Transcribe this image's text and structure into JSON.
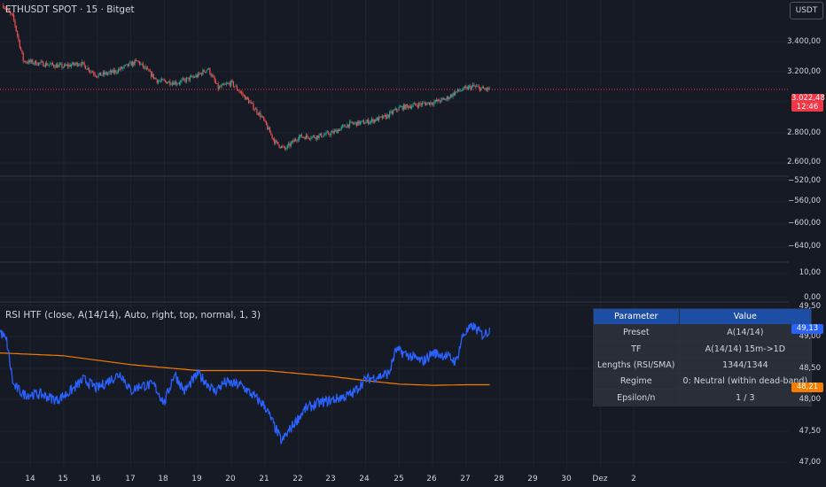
{
  "symbol_title": "ETHUSDT SPOT · 15 · Bitget",
  "currency_button": "USDT",
  "indicator_title": "RSI HTF (close, A(14/14), Auto, right, top, normal, 1, 3)",
  "price_axis": {
    "main": [
      "3.400,00",
      "3.200,00",
      "2.800,00",
      "2.600,00"
    ],
    "osc1": [
      "−520,00",
      "−560,00",
      "−600,00",
      "−640,00"
    ],
    "osc2": [
      "10,00",
      "0,00"
    ],
    "rsi": [
      "49,50",
      "49,00",
      "48,50",
      "48,00",
      "47,50",
      "47,00"
    ]
  },
  "badges": {
    "last_price": "3.022,48",
    "countdown": "12:46",
    "rsi_value": "49,13",
    "sma_value": "48,21"
  },
  "colors": {
    "background": "#161a25",
    "candle_up": "#26a69a",
    "candle_down": "#ef5350",
    "rsi_line": "#2962ff",
    "sma_line": "#f57c00",
    "table_header": "#1c4ea6",
    "last_price_badge": "#f23645"
  },
  "time_axis": [
    "14",
    "15",
    "16",
    "17",
    "18",
    "19",
    "20",
    "21",
    "22",
    "23",
    "24",
    "25",
    "26",
    "27",
    "28",
    "29",
    "30",
    "Dez",
    "2"
  ],
  "table": {
    "headers": [
      "Parameter",
      "Value"
    ],
    "rows": [
      [
        "Preset",
        "A(14/14)"
      ],
      [
        "TF",
        "A(14/14) 15m->1D"
      ],
      [
        "Lengths (RSI/SMA)",
        "1344/1344"
      ],
      [
        "Regime",
        "0: Neutral (within dead-band)"
      ],
      [
        "Epsilon/n",
        "1 / 3"
      ]
    ]
  },
  "chart_data": [
    {
      "type": "candlestick",
      "title": "ETHUSDT SPOT · 15 · Bitget",
      "x_unit": "day",
      "key_points": [
        [
          13.2,
          3490
        ],
        [
          13.5,
          3420
        ],
        [
          13.8,
          3180
        ],
        [
          14.2,
          3170
        ],
        [
          15.0,
          3150
        ],
        [
          15.5,
          3170
        ],
        [
          16.0,
          3100
        ],
        [
          16.5,
          3120
        ],
        [
          17.2,
          3180
        ],
        [
          17.8,
          3070
        ],
        [
          18.4,
          3060
        ],
        [
          19.0,
          3100
        ],
        [
          19.3,
          3140
        ],
        [
          19.6,
          3030
        ],
        [
          20.0,
          3060
        ],
        [
          20.5,
          2960
        ],
        [
          20.9,
          2870
        ],
        [
          21.3,
          2730
        ],
        [
          21.6,
          2690
        ],
        [
          22.0,
          2760
        ],
        [
          22.5,
          2760
        ],
        [
          23.0,
          2780
        ],
        [
          23.5,
          2830
        ],
        [
          24.0,
          2840
        ],
        [
          24.6,
          2870
        ],
        [
          25.0,
          2920
        ],
        [
          25.6,
          2940
        ],
        [
          26.0,
          2950
        ],
        [
          26.4,
          2970
        ],
        [
          26.7,
          3010
        ],
        [
          27.2,
          3040
        ],
        [
          27.5,
          3025
        ],
        [
          27.7,
          3022.48
        ]
      ],
      "last_price": 3022.48,
      "ylim": [
        2550,
        3520
      ]
    },
    {
      "type": "line",
      "title": "RSI HTF (close, A(14/14), Auto, right, top, normal, 1, 3)",
      "x_unit": "day",
      "series": [
        {
          "key_points": [
            [
              13.0,
              49.2
            ],
            [
              13.3,
              48.95
            ],
            [
              13.5,
              48.2
            ],
            [
              13.8,
              48.05
            ],
            [
              14.3,
              48.05
            ],
            [
              14.8,
              47.95
            ],
            [
              15.2,
              48.1
            ],
            [
              15.6,
              48.3
            ],
            [
              16.0,
              48.15
            ],
            [
              16.4,
              48.3
            ],
            [
              16.7,
              48.4
            ],
            [
              17.0,
              48.1
            ],
            [
              17.3,
              48.2
            ],
            [
              17.7,
              48.2
            ],
            [
              18.0,
              47.9
            ],
            [
              18.3,
              48.4
            ],
            [
              18.6,
              48.1
            ],
            [
              19.0,
              48.4
            ],
            [
              19.5,
              48.1
            ],
            [
              19.8,
              48.25
            ],
            [
              20.3,
              48.2
            ],
            [
              20.7,
              48.0
            ],
            [
              21.0,
              47.85
            ],
            [
              21.5,
              47.25
            ],
            [
              21.8,
              47.5
            ],
            [
              22.2,
              47.8
            ],
            [
              22.6,
              47.9
            ],
            [
              23.0,
              47.95
            ],
            [
              23.6,
              48.05
            ],
            [
              24.0,
              48.3
            ],
            [
              24.4,
              48.35
            ],
            [
              24.7,
              48.4
            ],
            [
              24.9,
              48.8
            ],
            [
              25.3,
              48.7
            ],
            [
              25.7,
              48.6
            ],
            [
              26.0,
              48.75
            ],
            [
              26.4,
              48.7
            ],
            [
              26.7,
              48.6
            ],
            [
              26.9,
              49.05
            ],
            [
              27.2,
              49.2
            ],
            [
              27.5,
              49.05
            ],
            [
              27.7,
              49.13
            ]
          ],
          "last": 49.13
        },
        {
          "key_points": [
            [
              13.0,
              48.75
            ],
            [
              15.0,
              48.7
            ],
            [
              17.0,
              48.55
            ],
            [
              19.0,
              48.45
            ],
            [
              21.0,
              48.45
            ],
            [
              23.0,
              48.35
            ],
            [
              24.0,
              48.28
            ],
            [
              25.0,
              48.22
            ],
            [
              26.0,
              48.2
            ],
            [
              27.0,
              48.21
            ],
            [
              27.7,
              48.21
            ]
          ],
          "last": 48.21
        }
      ],
      "ylim": [
        46.9,
        49.55
      ]
    }
  ]
}
